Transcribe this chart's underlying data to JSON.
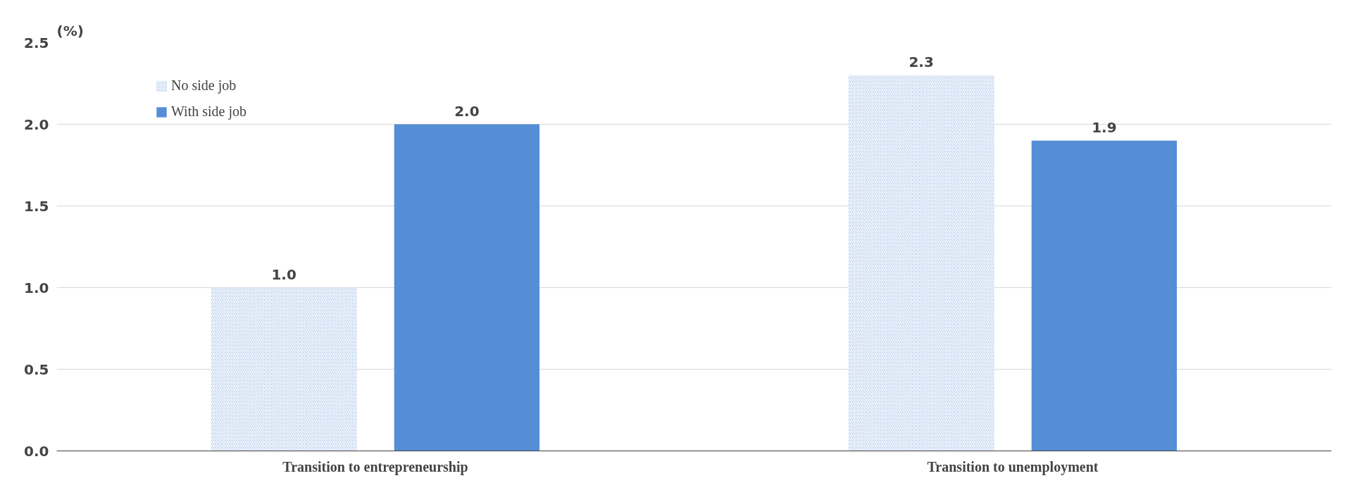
{
  "chart_data": {
    "type": "bar",
    "ylabel": "(%)",
    "categories": [
      "Transition to entrepreneurship",
      "Transition to unemployment"
    ],
    "series": [
      {
        "name": "No side job",
        "color": "#a9c4ea",
        "values": [
          1.0,
          2.3
        ],
        "value_labels": [
          "1.0",
          "2.3"
        ]
      },
      {
        "name": "With side job",
        "color": "#558ed5",
        "values": [
          2.0,
          1.9
        ],
        "value_labels": [
          "2.0",
          "1.9"
        ]
      }
    ],
    "ylim": [
      0,
      2.5
    ],
    "yticks": [
      {
        "value": 0,
        "label": "0.0"
      },
      {
        "value": 0.5,
        "label": "0.5"
      },
      {
        "value": 1,
        "label": "1.0"
      },
      {
        "value": 1.5,
        "label": "1.5"
      },
      {
        "value": 2,
        "label": "2.0"
      },
      {
        "value": 2.5,
        "label": "2.5"
      }
    ],
    "grid": "y",
    "legend": "top left"
  }
}
